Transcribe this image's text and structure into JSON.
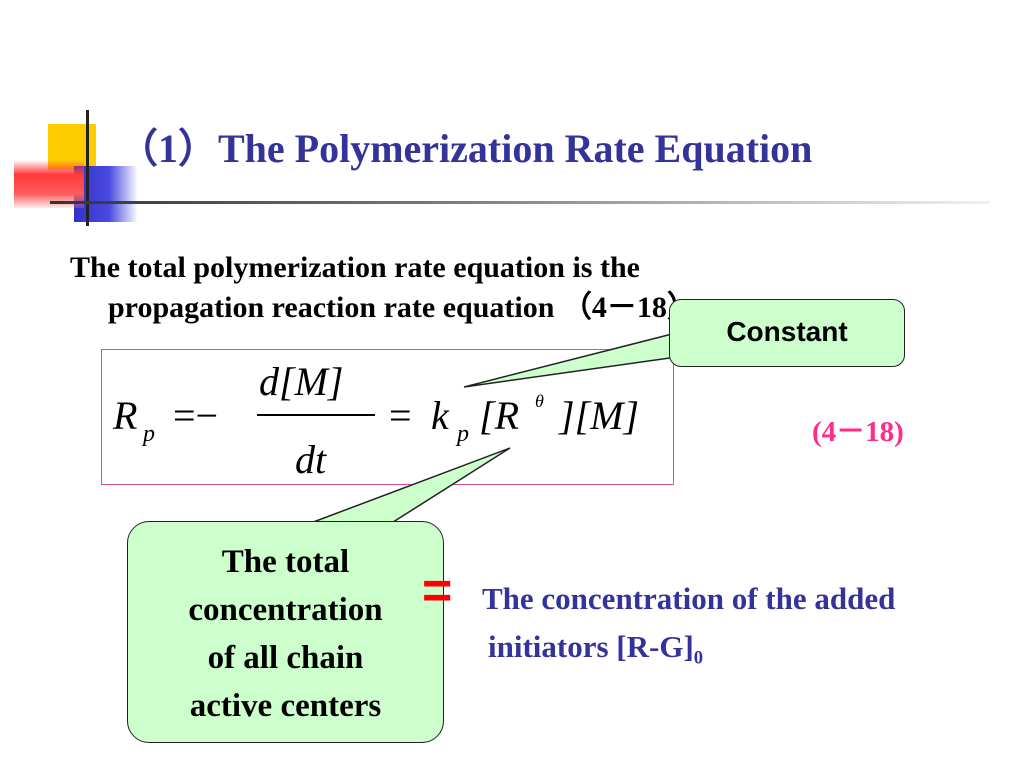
{
  "slide": {
    "title": "（1）The Polymerization Rate Equation",
    "body_line1": "The total polymerization rate equation is the",
    "body_line2": "propagation reaction rate equation （4－18）",
    "equation": {
      "lhs": "R",
      "lhs_sub": "p",
      "eq1": "=−",
      "numerator": "d[M]",
      "denominator": "dt",
      "eq2": "=",
      "k": "k",
      "k_sub": "p",
      "bracket_open": "[R",
      "radical_sup": "θ",
      "bracket_rest": "][M]"
    },
    "equation_number": "(4－18)",
    "callout_constant": "Constant",
    "callout_total_lines": [
      "The total",
      "concentration",
      "of all chain",
      "active centers"
    ],
    "equals": "=",
    "concentration_line1": "The concentration of the added",
    "concentration_line2": "initiators [R-G]",
    "concentration_sub": "0"
  },
  "colors": {
    "title": "#333399",
    "equation_number": "#ff2d8a",
    "callout_fill": "#ccffcc",
    "equals": "#ff0000",
    "box_border": "#e0509a"
  }
}
